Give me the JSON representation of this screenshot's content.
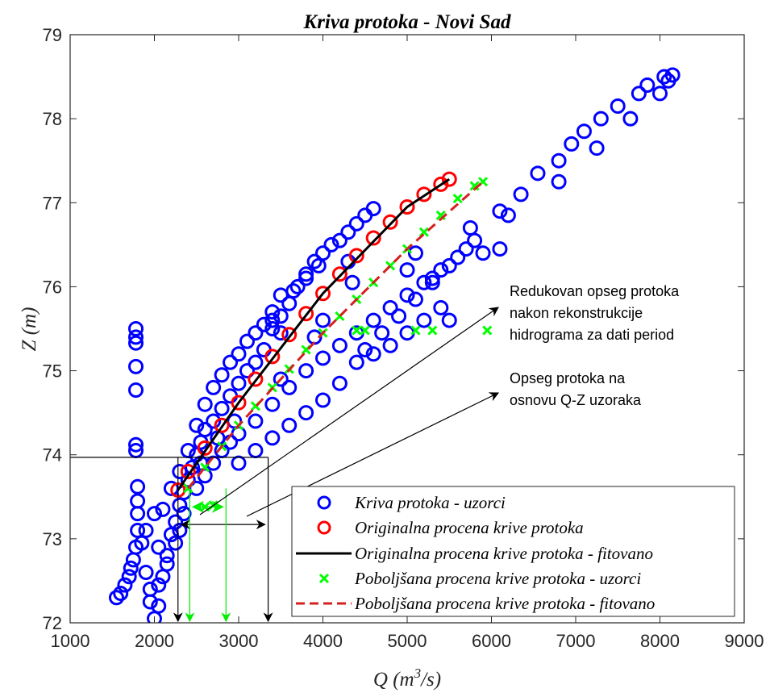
{
  "chart_data": {
    "type": "scatter",
    "title": "Kriva protoka - Novi Sad",
    "xlabel": "Q (m",
    "xlabel_sup": "3",
    "xlabel_suffix": "/s)",
    "ylabel": "Z (m)",
    "xlim": [
      1000,
      9000
    ],
    "ylim": [
      72,
      79
    ],
    "xticks": [
      1000,
      2000,
      3000,
      4000,
      5000,
      6000,
      7000,
      8000,
      9000
    ],
    "yticks": [
      72,
      73,
      74,
      75,
      76,
      77,
      78,
      79
    ],
    "xtick_labels": [
      "1000",
      "2000",
      "3000",
      "4000",
      "5000",
      "6000",
      "7000",
      "8000",
      "9000"
    ],
    "ytick_labels": [
      "72",
      "73",
      "74",
      "75",
      "76",
      "77",
      "78",
      "79"
    ],
    "grid": false,
    "legend_position": "bottom-right",
    "colors": {
      "samples": "#0000ff",
      "original": "#ff0000",
      "original_fit": "#000000",
      "improved": "#00ff00",
      "improved_fit": "#d62020"
    },
    "series": [
      {
        "name": "Kriva protoka - uzorci",
        "marker": "circle",
        "color": "#0000ff",
        "points": [
          [
            1550,
            72.3
          ],
          [
            1600,
            72.35
          ],
          [
            1650,
            72.45
          ],
          [
            1700,
            72.55
          ],
          [
            1720,
            72.65
          ],
          [
            1750,
            72.75
          ],
          [
            1780,
            72.9
          ],
          [
            1800,
            73.1
          ],
          [
            1800,
            73.3
          ],
          [
            1800,
            73.45
          ],
          [
            1800,
            73.62
          ],
          [
            1780,
            74.05
          ],
          [
            1780,
            74.12
          ],
          [
            1780,
            74.77
          ],
          [
            1780,
            75.05
          ],
          [
            1780,
            75.33
          ],
          [
            1780,
            75.4
          ],
          [
            1780,
            75.5
          ],
          [
            1850,
            72.95
          ],
          [
            1900,
            72.6
          ],
          [
            1950,
            72.4
          ],
          [
            2000,
            72.05
          ],
          [
            2050,
            72.2
          ],
          [
            2100,
            72.55
          ],
          [
            2150,
            72.8
          ],
          [
            2200,
            73.05
          ],
          [
            2250,
            73.2
          ],
          [
            2300,
            73.4
          ],
          [
            2350,
            73.55
          ],
          [
            2400,
            73.7
          ],
          [
            2450,
            73.85
          ],
          [
            2500,
            74.0
          ],
          [
            2550,
            74.15
          ],
          [
            2600,
            74.3
          ],
          [
            2700,
            74.4
          ],
          [
            2800,
            74.55
          ],
          [
            2900,
            74.7
          ],
          [
            3000,
            74.85
          ],
          [
            3100,
            75.0
          ],
          [
            3200,
            75.1
          ],
          [
            3300,
            75.25
          ],
          [
            3400,
            75.5
          ],
          [
            3500,
            75.65
          ],
          [
            3600,
            75.8
          ],
          [
            3700,
            76.0
          ],
          [
            3800,
            76.15
          ],
          [
            3900,
            76.3
          ],
          [
            4000,
            76.4
          ],
          [
            4100,
            76.5
          ],
          [
            4200,
            76.55
          ],
          [
            4300,
            76.65
          ],
          [
            4400,
            76.75
          ],
          [
            4500,
            76.85
          ],
          [
            4600,
            76.93
          ],
          [
            2100,
            73.35
          ],
          [
            2200,
            73.6
          ],
          [
            2300,
            73.8
          ],
          [
            2400,
            74.05
          ],
          [
            2500,
            74.35
          ],
          [
            2600,
            74.6
          ],
          [
            2700,
            74.8
          ],
          [
            2800,
            74.95
          ],
          [
            2900,
            75.1
          ],
          [
            3000,
            75.2
          ],
          [
            3100,
            75.35
          ],
          [
            3200,
            75.45
          ],
          [
            3300,
            75.55
          ],
          [
            3400,
            75.7
          ],
          [
            3500,
            75.9
          ],
          [
            3650,
            75.95
          ],
          [
            3800,
            76.1
          ],
          [
            3950,
            76.25
          ],
          [
            2500,
            73.6
          ],
          [
            2600,
            73.75
          ],
          [
            2700,
            73.9
          ],
          [
            2800,
            74.05
          ],
          [
            2900,
            74.15
          ],
          [
            3000,
            74.25
          ],
          [
            3200,
            74.4
          ],
          [
            3400,
            74.6
          ],
          [
            3600,
            74.8
          ],
          [
            3800,
            75.0
          ],
          [
            4000,
            75.15
          ],
          [
            4200,
            75.3
          ],
          [
            4400,
            75.45
          ],
          [
            4600,
            75.6
          ],
          [
            4800,
            75.75
          ],
          [
            5000,
            75.9
          ],
          [
            5200,
            76.05
          ],
          [
            5400,
            76.2
          ],
          [
            4400,
            75.1
          ],
          [
            4600,
            75.2
          ],
          [
            4800,
            75.3
          ],
          [
            5000,
            75.45
          ],
          [
            5200,
            75.6
          ],
          [
            5400,
            75.75
          ],
          [
            3000,
            73.9
          ],
          [
            3200,
            74.05
          ],
          [
            3400,
            74.2
          ],
          [
            3600,
            74.35
          ],
          [
            3800,
            74.5
          ],
          [
            4000,
            74.65
          ],
          [
            4200,
            74.85
          ],
          [
            4500,
            75.25
          ],
          [
            4700,
            75.45
          ],
          [
            4900,
            75.65
          ],
          [
            5100,
            75.85
          ],
          [
            5300,
            76.05
          ],
          [
            5500,
            76.25
          ],
          [
            5600,
            76.35
          ],
          [
            5700,
            76.45
          ],
          [
            5800,
            76.55
          ],
          [
            5750,
            76.7
          ],
          [
            5900,
            76.4
          ],
          [
            6100,
            76.45
          ],
          [
            6100,
            76.9
          ],
          [
            6200,
            76.85
          ],
          [
            6350,
            77.1
          ],
          [
            6550,
            77.35
          ],
          [
            6800,
            77.25
          ],
          [
            6800,
            77.5
          ],
          [
            6950,
            77.7
          ],
          [
            7100,
            77.85
          ],
          [
            7250,
            77.65
          ],
          [
            7300,
            78.0
          ],
          [
            7500,
            78.15
          ],
          [
            7650,
            78.0
          ],
          [
            7750,
            78.3
          ],
          [
            7850,
            78.4
          ],
          [
            8000,
            78.3
          ],
          [
            8050,
            78.5
          ],
          [
            8100,
            78.45
          ],
          [
            8150,
            78.52
          ],
          [
            3500,
            75.45
          ],
          [
            3400,
            75.6
          ],
          [
            4300,
            76.3
          ],
          [
            4350,
            76.05
          ],
          [
            5000,
            76.2
          ],
          [
            5100,
            76.4
          ],
          [
            5300,
            76.1
          ],
          [
            5500,
            75.6
          ],
          [
            4000,
            75.6
          ],
          [
            3900,
            75.4
          ],
          [
            3500,
            74.9
          ],
          [
            2950,
            74.4
          ],
          [
            2750,
            74.2
          ],
          [
            2550,
            73.9
          ],
          [
            2350,
            73.3
          ],
          [
            2250,
            72.95
          ],
          [
            2150,
            72.7
          ],
          [
            2050,
            72.45
          ],
          [
            1950,
            72.25
          ],
          [
            2300,
            73.1
          ],
          [
            2050,
            72.9
          ],
          [
            1900,
            73.1
          ],
          [
            2000,
            73.3
          ]
        ]
      },
      {
        "name": "Originalna procena krive protoka",
        "marker": "circle",
        "color": "#ff0000",
        "points": [
          [
            2280,
            73.58
          ],
          [
            2400,
            73.8
          ],
          [
            2600,
            74.08
          ],
          [
            2800,
            74.35
          ],
          [
            3000,
            74.62
          ],
          [
            3200,
            74.9
          ],
          [
            3400,
            75.17
          ],
          [
            3600,
            75.43
          ],
          [
            3800,
            75.68
          ],
          [
            4000,
            75.92
          ],
          [
            4200,
            76.15
          ],
          [
            4400,
            76.37
          ],
          [
            4600,
            76.58
          ],
          [
            4800,
            76.77
          ],
          [
            5000,
            76.95
          ],
          [
            5200,
            77.1
          ],
          [
            5400,
            77.22
          ],
          [
            5500,
            77.28
          ]
        ]
      },
      {
        "name": "Originalna procena krive protoka - fitovano",
        "marker": "line",
        "color": "#000000",
        "points": [
          [
            2280,
            73.58
          ],
          [
            3000,
            74.62
          ],
          [
            4000,
            75.92
          ],
          [
            5000,
            76.95
          ],
          [
            5500,
            77.28
          ]
        ]
      },
      {
        "name": "Poboljšana procena krive protoka - uzorci",
        "marker": "x",
        "color": "#00ff00",
        "points": [
          [
            2400,
            73.6
          ],
          [
            2600,
            73.85
          ],
          [
            2800,
            74.1
          ],
          [
            3000,
            74.35
          ],
          [
            3200,
            74.58
          ],
          [
            3400,
            74.8
          ],
          [
            3600,
            75.02
          ],
          [
            3800,
            75.25
          ],
          [
            4000,
            75.45
          ],
          [
            4200,
            75.65
          ],
          [
            4400,
            75.85
          ],
          [
            4600,
            76.05
          ],
          [
            4800,
            76.25
          ],
          [
            5000,
            76.45
          ],
          [
            5200,
            76.65
          ],
          [
            5400,
            76.85
          ],
          [
            5600,
            77.05
          ],
          [
            5800,
            77.2
          ],
          [
            5900,
            77.25
          ],
          [
            4400,
            75.48
          ],
          [
            4500,
            75.48
          ],
          [
            5100,
            75.48
          ],
          [
            5300,
            75.48
          ],
          [
            5950,
            75.48
          ],
          [
            2700,
            73.4
          ],
          [
            2600,
            73.38
          ]
        ]
      },
      {
        "name": "Poboljšana procena krive protoka - fitovano",
        "marker": "dashed-line",
        "color": "#d62020",
        "points": [
          [
            2400,
            73.6
          ],
          [
            3000,
            74.35
          ],
          [
            4000,
            75.45
          ],
          [
            5000,
            76.45
          ],
          [
            5900,
            77.25
          ]
        ]
      }
    ],
    "annotations": [
      {
        "lines": [
          "Redukovan opseg protoka",
          "nakon rekonstrukcije",
          "hidrograma za dati period"
        ]
      },
      {
        "lines": [
          "Opseg protoka na",
          "osnovu Q-Z uzoraka"
        ]
      }
    ],
    "range_markers": {
      "black_z": 73.97,
      "black_q": [
        2280,
        3350
      ],
      "green_z": 73.6,
      "green_q": [
        2420,
        2850
      ]
    }
  }
}
